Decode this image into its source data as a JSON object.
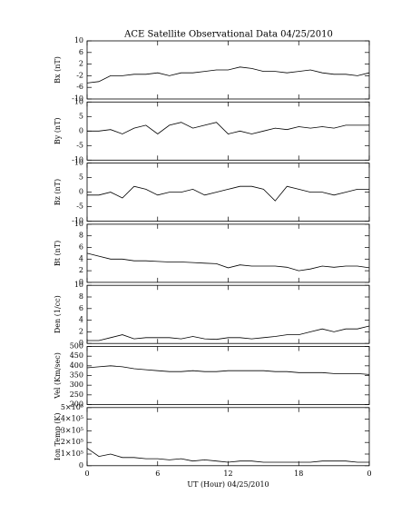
{
  "chart_data": [
    {
      "type": "line",
      "title": "ACE Satellite Observational Data   04/25/2010",
      "y_label": "Bx (nT)",
      "x": [
        0,
        1,
        2,
        3,
        4,
        5,
        6,
        7,
        8,
        9,
        10,
        11,
        12,
        13,
        14,
        15,
        16,
        17,
        18,
        19,
        20,
        21,
        22,
        23,
        24
      ],
      "values": [
        -4.5,
        -4,
        -2,
        -2,
        -1.5,
        -1.5,
        -1,
        -2,
        -1,
        -1,
        -0.5,
        0,
        0,
        1,
        0.5,
        -0.5,
        -0.5,
        -1,
        -0.5,
        0,
        -1,
        -1.5,
        -1.5,
        -2,
        -1
      ],
      "color": "#000000",
      "ylim": [
        -10,
        10
      ],
      "yticks": [
        -10,
        -6,
        -2,
        2,
        6,
        10
      ]
    },
    {
      "type": "line",
      "y_label": "By (nT)",
      "x": [
        0,
        1,
        2,
        3,
        4,
        5,
        6,
        7,
        8,
        9,
        10,
        11,
        12,
        13,
        14,
        15,
        16,
        17,
        18,
        19,
        20,
        21,
        22,
        23,
        24
      ],
      "values": [
        0,
        0,
        0.5,
        -1,
        1,
        2,
        -1,
        2,
        3,
        1,
        2,
        3,
        -1,
        0,
        -1,
        0,
        1,
        0.5,
        1.5,
        1,
        1.5,
        1,
        2,
        2,
        2
      ],
      "color": "#000000",
      "ylim": [
        -10,
        10
      ],
      "yticks": [
        -10,
        -5,
        0,
        5,
        10
      ]
    },
    {
      "type": "line",
      "y_label": "Bz (nT)",
      "x": [
        0,
        1,
        2,
        3,
        4,
        5,
        6,
        7,
        8,
        9,
        10,
        11,
        12,
        13,
        14,
        15,
        16,
        17,
        18,
        19,
        20,
        21,
        22,
        23,
        24
      ],
      "values": [
        -1,
        -1,
        0,
        -2,
        2,
        1,
        -1,
        0,
        0,
        1,
        -1,
        0,
        1,
        2,
        2,
        1,
        -3,
        2,
        1,
        0,
        0,
        -1,
        0,
        1,
        1
      ],
      "color": "#000000",
      "ylim": [
        -10,
        10
      ],
      "yticks": [
        -10,
        -5,
        0,
        5,
        10
      ]
    },
    {
      "type": "line",
      "y_label": "Bt (nT)",
      "x": [
        0,
        1,
        2,
        3,
        4,
        5,
        6,
        7,
        8,
        9,
        10,
        11,
        12,
        13,
        14,
        15,
        16,
        17,
        18,
        19,
        20,
        21,
        22,
        23,
        24
      ],
      "values": [
        5,
        4.5,
        4,
        4,
        3.7,
        3.7,
        3.6,
        3.5,
        3.5,
        3.4,
        3.3,
        3.2,
        2.5,
        3,
        2.8,
        2.8,
        2.8,
        2.6,
        2,
        2.3,
        2.8,
        2.6,
        2.8,
        2.8,
        2.5
      ],
      "color": "#000000",
      "ylim": [
        0,
        10
      ],
      "yticks": [
        0,
        2,
        4,
        6,
        8,
        10
      ]
    },
    {
      "type": "line",
      "y_label": "Den (1/cc)",
      "x": [
        0,
        1,
        2,
        3,
        4,
        5,
        6,
        7,
        8,
        9,
        10,
        11,
        12,
        13,
        14,
        15,
        16,
        17,
        18,
        19,
        20,
        21,
        22,
        23,
        24
      ],
      "values": [
        0.5,
        0.5,
        1,
        1.5,
        0.8,
        1,
        1,
        1,
        0.8,
        1.2,
        0.8,
        0.7,
        1,
        1,
        0.8,
        1,
        1.2,
        1.5,
        1.5,
        2,
        2.5,
        2,
        2.5,
        2.5,
        3
      ],
      "color": "#000000",
      "ylim": [
        0,
        10
      ],
      "yticks": [
        0,
        2,
        4,
        6,
        8,
        10
      ]
    },
    {
      "type": "line",
      "y_label": "Vel (Km/sec)",
      "x": [
        0,
        1,
        2,
        3,
        4,
        5,
        6,
        7,
        8,
        9,
        10,
        11,
        12,
        13,
        14,
        15,
        16,
        17,
        18,
        19,
        20,
        21,
        22,
        23,
        24
      ],
      "values": [
        390,
        395,
        400,
        395,
        385,
        380,
        375,
        370,
        370,
        375,
        370,
        370,
        375,
        375,
        375,
        375,
        370,
        370,
        365,
        365,
        365,
        360,
        360,
        360,
        355
      ],
      "color": "#000000",
      "ylim": [
        200,
        500
      ],
      "yticks": [
        200,
        250,
        300,
        350,
        400,
        450,
        500
      ]
    },
    {
      "type": "line",
      "y_label": "Ion Temp (K)",
      "x_label": "UT (Hour)   04/25/2010",
      "x": [
        0,
        1,
        2,
        3,
        4,
        5,
        6,
        7,
        8,
        9,
        10,
        11,
        12,
        13,
        14,
        15,
        16,
        17,
        18,
        19,
        20,
        21,
        22,
        23,
        24
      ],
      "values": [
        150000,
        80000,
        100000,
        70000,
        70000,
        60000,
        60000,
        50000,
        60000,
        40000,
        50000,
        40000,
        30000,
        40000,
        40000,
        30000,
        30000,
        30000,
        30000,
        30000,
        40000,
        40000,
        40000,
        30000,
        30000
      ],
      "color": "#000000",
      "ylim": [
        0,
        500000
      ],
      "yticks": [
        0,
        {
          "value": 100000,
          "label": "1×10⁵"
        },
        {
          "value": 200000,
          "label": "2×10⁵"
        },
        {
          "value": 300000,
          "label": "3×10⁵"
        },
        {
          "value": 400000,
          "label": "4×10⁵"
        },
        {
          "value": 500000,
          "label": "5×10⁵"
        }
      ],
      "xlim": [
        0,
        24
      ],
      "xticks": [
        0,
        6,
        12,
        18,
        {
          "value": 24,
          "label": "0"
        }
      ]
    }
  ]
}
